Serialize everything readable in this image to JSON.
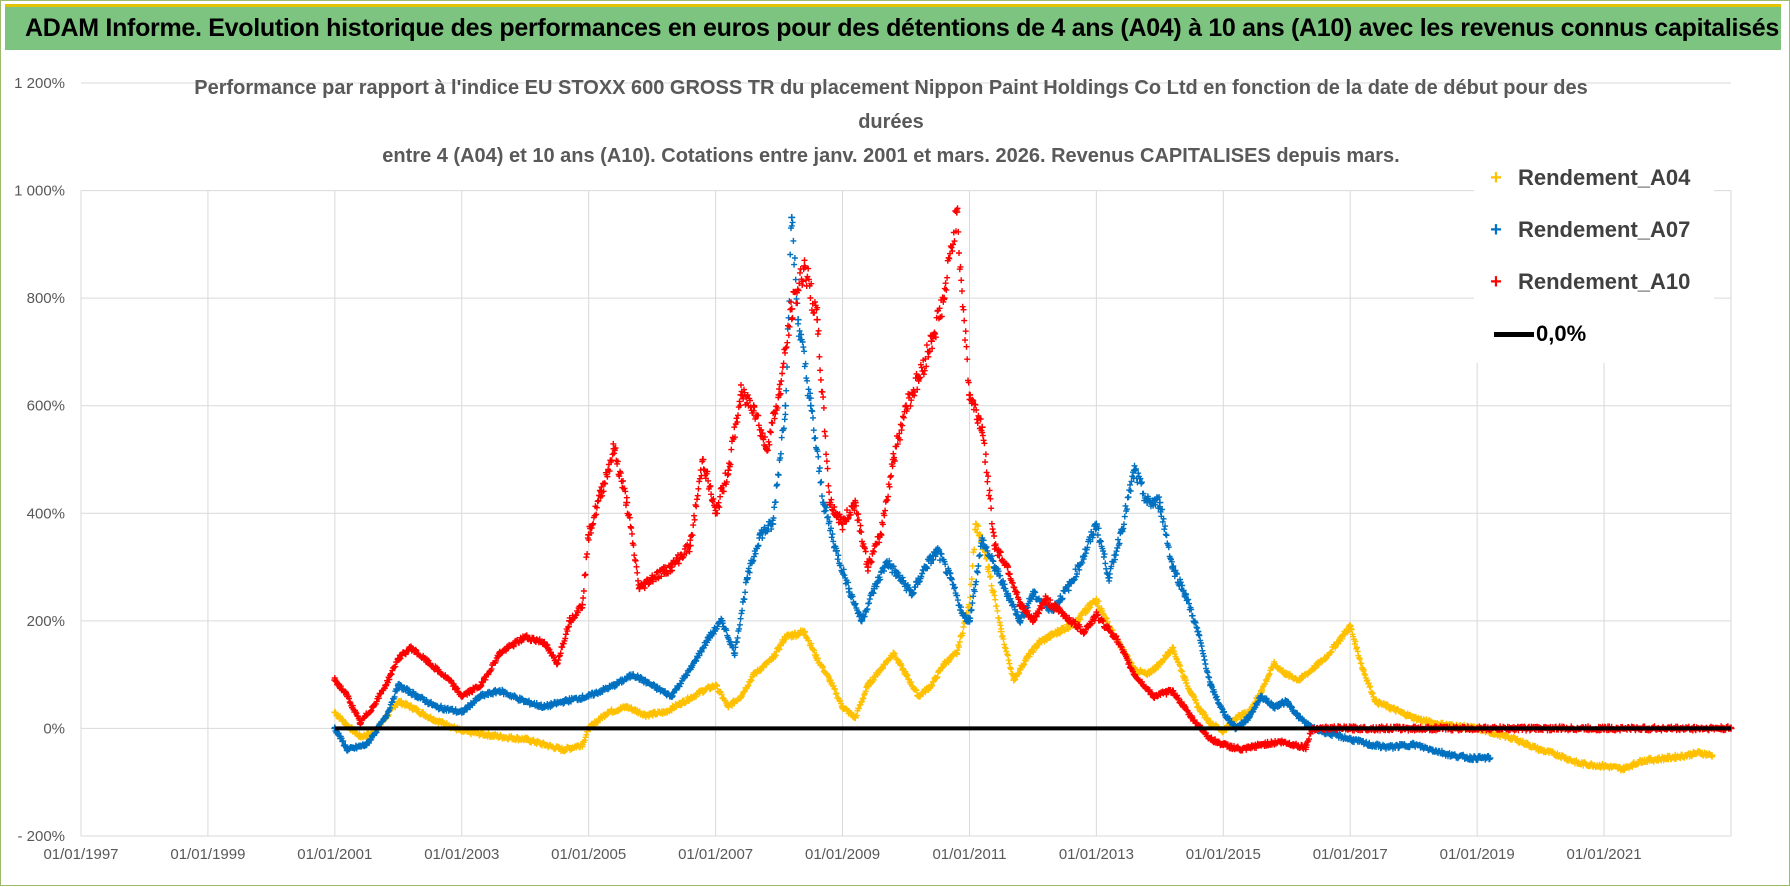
{
  "banner": {
    "title": "ADAM Informe. Evolution historique des performances en euros pour des détentions de 4 ans (A04) à 10 ans (A10) avec les revenus connus capitalisés"
  },
  "chart_data": {
    "type": "scatter",
    "title_lines": [
      "Performance par rapport à l'indice EU STOXX 600 GROSS TR  du placement Nippon Paint Holdings Co Ltd en fonction de la date de début pour des",
      "durées",
      "entre 4 (A04) et 10 ans (A10).  Cotations entre janv. 2001 et mars. 2026.  Revenus CAPITALISES depuis mars."
    ],
    "xlabel": "",
    "ylabel": "",
    "x_range": [
      1997.0,
      2023.0
    ],
    "ylim": [
      -200,
      1200
    ],
    "x_ticks": [
      1997,
      1999,
      2001,
      2003,
      2005,
      2007,
      2009,
      2011,
      2013,
      2015,
      2017,
      2019,
      2021
    ],
    "x_tick_labels": [
      "01/01/1997",
      "01/01/1999",
      "01/01/2001",
      "01/01/2003",
      "01/01/2005",
      "01/01/2007",
      "01/01/2009",
      "01/01/2011",
      "01/01/2013",
      "01/01/2015",
      "01/01/2017",
      "01/01/2019",
      "01/01/2021"
    ],
    "y_ticks": [
      -200,
      0,
      200,
      400,
      600,
      800,
      1000,
      1200
    ],
    "y_tick_labels": [
      "- 200%",
      "0%",
      "200%",
      "400%",
      "600%",
      "800%",
      "1 000%",
      "1 200%"
    ],
    "grid": true,
    "legend_position": "top-right",
    "series": [
      {
        "name": "Rendement_A04",
        "color": "#ffc000",
        "marker": "plus",
        "points": [
          [
            2001.0,
            30
          ],
          [
            2001.2,
            5
          ],
          [
            2001.4,
            -15
          ],
          [
            2001.6,
            -10
          ],
          [
            2001.8,
            20
          ],
          [
            2002.0,
            50
          ],
          [
            2002.2,
            40
          ],
          [
            2002.5,
            20
          ],
          [
            2002.8,
            5
          ],
          [
            2003.0,
            -5
          ],
          [
            2003.3,
            -10
          ],
          [
            2003.6,
            -15
          ],
          [
            2004.0,
            -20
          ],
          [
            2004.3,
            -30
          ],
          [
            2004.6,
            -40
          ],
          [
            2004.9,
            -30
          ],
          [
            2005.0,
            0
          ],
          [
            2005.3,
            30
          ],
          [
            2005.6,
            40
          ],
          [
            2005.9,
            25
          ],
          [
            2006.2,
            30
          ],
          [
            2006.5,
            50
          ],
          [
            2006.8,
            70
          ],
          [
            2007.0,
            80
          ],
          [
            2007.2,
            40
          ],
          [
            2007.4,
            60
          ],
          [
            2007.6,
            100
          ],
          [
            2007.9,
            130
          ],
          [
            2008.1,
            170
          ],
          [
            2008.4,
            180
          ],
          [
            2008.6,
            130
          ],
          [
            2008.8,
            90
          ],
          [
            2009.0,
            40
          ],
          [
            2009.2,
            20
          ],
          [
            2009.4,
            80
          ],
          [
            2009.6,
            110
          ],
          [
            2009.8,
            140
          ],
          [
            2010.0,
            100
          ],
          [
            2010.2,
            60
          ],
          [
            2010.4,
            80
          ],
          [
            2010.6,
            120
          ],
          [
            2010.8,
            140
          ],
          [
            2011.0,
            230
          ],
          [
            2011.1,
            380
          ],
          [
            2011.3,
            300
          ],
          [
            2011.5,
            180
          ],
          [
            2011.7,
            90
          ],
          [
            2011.9,
            130
          ],
          [
            2012.1,
            160
          ],
          [
            2012.4,
            180
          ],
          [
            2012.7,
            200
          ],
          [
            2013.0,
            240
          ],
          [
            2013.2,
            190
          ],
          [
            2013.4,
            150
          ],
          [
            2013.6,
            110
          ],
          [
            2013.8,
            100
          ],
          [
            2014.0,
            120
          ],
          [
            2014.2,
            150
          ],
          [
            2014.4,
            90
          ],
          [
            2014.6,
            40
          ],
          [
            2014.8,
            10
          ],
          [
            2015.0,
            -5
          ],
          [
            2015.2,
            20
          ],
          [
            2015.4,
            30
          ],
          [
            2015.6,
            70
          ],
          [
            2015.8,
            120
          ],
          [
            2016.0,
            100
          ],
          [
            2016.2,
            90
          ],
          [
            2016.4,
            110
          ],
          [
            2016.6,
            130
          ],
          [
            2016.8,
            160
          ],
          [
            2017.0,
            190
          ],
          [
            2017.2,
            110
          ],
          [
            2017.4,
            50
          ],
          [
            2017.6,
            40
          ],
          [
            2017.8,
            30
          ],
          [
            2018.0,
            20
          ],
          [
            2018.3,
            10
          ],
          [
            2018.6,
            5
          ],
          [
            2019.0,
            0
          ],
          [
            2019.3,
            -10
          ],
          [
            2019.6,
            -20
          ],
          [
            2020.0,
            -40
          ],
          [
            2020.3,
            -50
          ],
          [
            2020.6,
            -65
          ],
          [
            2021.0,
            -70
          ],
          [
            2021.3,
            -75
          ],
          [
            2021.6,
            -60
          ],
          [
            2022.0,
            -55
          ],
          [
            2022.3,
            -50
          ],
          [
            2022.5,
            -45
          ],
          [
            2022.7,
            -50
          ]
        ]
      },
      {
        "name": "Rendement_A07",
        "color": "#0070c0",
        "marker": "plus",
        "points": [
          [
            2001.0,
            0
          ],
          [
            2001.2,
            -40
          ],
          [
            2001.5,
            -30
          ],
          [
            2001.8,
            20
          ],
          [
            2002.0,
            80
          ],
          [
            2002.3,
            60
          ],
          [
            2002.6,
            40
          ],
          [
            2003.0,
            30
          ],
          [
            2003.3,
            60
          ],
          [
            2003.6,
            70
          ],
          [
            2004.0,
            50
          ],
          [
            2004.3,
            40
          ],
          [
            2004.6,
            50
          ],
          [
            2005.0,
            60
          ],
          [
            2005.4,
            80
          ],
          [
            2005.7,
            100
          ],
          [
            2006.0,
            80
          ],
          [
            2006.3,
            60
          ],
          [
            2006.6,
            110
          ],
          [
            2006.9,
            170
          ],
          [
            2007.1,
            200
          ],
          [
            2007.3,
            140
          ],
          [
            2007.5,
            280
          ],
          [
            2007.7,
            360
          ],
          [
            2007.9,
            380
          ],
          [
            2008.1,
            600
          ],
          [
            2008.2,
            950
          ],
          [
            2008.3,
            760
          ],
          [
            2008.5,
            600
          ],
          [
            2008.7,
            420
          ],
          [
            2008.9,
            330
          ],
          [
            2009.1,
            260
          ],
          [
            2009.3,
            200
          ],
          [
            2009.5,
            260
          ],
          [
            2009.7,
            310
          ],
          [
            2009.9,
            280
          ],
          [
            2010.1,
            250
          ],
          [
            2010.3,
            300
          ],
          [
            2010.5,
            330
          ],
          [
            2010.7,
            280
          ],
          [
            2010.9,
            210
          ],
          [
            2011.0,
            200
          ],
          [
            2011.2,
            350
          ],
          [
            2011.4,
            300
          ],
          [
            2011.6,
            250
          ],
          [
            2011.8,
            200
          ],
          [
            2012.0,
            250
          ],
          [
            2012.3,
            220
          ],
          [
            2012.6,
            270
          ],
          [
            2012.8,
            320
          ],
          [
            2013.0,
            380
          ],
          [
            2013.2,
            280
          ],
          [
            2013.4,
            370
          ],
          [
            2013.6,
            480
          ],
          [
            2013.8,
            420
          ],
          [
            2014.0,
            420
          ],
          [
            2014.2,
            300
          ],
          [
            2014.4,
            250
          ],
          [
            2014.6,
            180
          ],
          [
            2014.8,
            80
          ],
          [
            2015.0,
            30
          ],
          [
            2015.2,
            0
          ],
          [
            2015.4,
            20
          ],
          [
            2015.6,
            60
          ],
          [
            2015.8,
            40
          ],
          [
            2016.0,
            50
          ],
          [
            2016.2,
            20
          ],
          [
            2016.4,
            0
          ],
          [
            2016.7,
            -10
          ],
          [
            2017.0,
            -20
          ],
          [
            2017.3,
            -30
          ],
          [
            2017.6,
            -35
          ],
          [
            2018.0,
            -30
          ],
          [
            2018.3,
            -40
          ],
          [
            2018.6,
            -50
          ],
          [
            2018.9,
            -55
          ],
          [
            2019.2,
            -55
          ]
        ]
      },
      {
        "name": "Rendement_A10",
        "color": "#ff0000",
        "marker": "plus",
        "points": [
          [
            2001.0,
            90
          ],
          [
            2001.2,
            60
          ],
          [
            2001.4,
            10
          ],
          [
            2001.6,
            40
          ],
          [
            2001.8,
            80
          ],
          [
            2002.0,
            130
          ],
          [
            2002.2,
            150
          ],
          [
            2002.5,
            120
          ],
          [
            2002.8,
            90
          ],
          [
            2003.0,
            60
          ],
          [
            2003.3,
            80
          ],
          [
            2003.6,
            140
          ],
          [
            2004.0,
            170
          ],
          [
            2004.3,
            160
          ],
          [
            2004.5,
            120
          ],
          [
            2004.7,
            200
          ],
          [
            2004.9,
            230
          ],
          [
            2005.0,
            360
          ],
          [
            2005.2,
            440
          ],
          [
            2005.4,
            520
          ],
          [
            2005.6,
            420
          ],
          [
            2005.8,
            260
          ],
          [
            2006.0,
            280
          ],
          [
            2006.3,
            300
          ],
          [
            2006.6,
            340
          ],
          [
            2006.8,
            500
          ],
          [
            2007.0,
            400
          ],
          [
            2007.2,
            480
          ],
          [
            2007.4,
            620
          ],
          [
            2007.6,
            600
          ],
          [
            2007.8,
            520
          ],
          [
            2008.0,
            620
          ],
          [
            2008.2,
            780
          ],
          [
            2008.4,
            860
          ],
          [
            2008.6,
            760
          ],
          [
            2008.8,
            420
          ],
          [
            2009.0,
            380
          ],
          [
            2009.2,
            420
          ],
          [
            2009.4,
            300
          ],
          [
            2009.6,
            360
          ],
          [
            2009.8,
            500
          ],
          [
            2010.0,
            600
          ],
          [
            2010.2,
            650
          ],
          [
            2010.4,
            720
          ],
          [
            2010.6,
            800
          ],
          [
            2010.8,
            960
          ],
          [
            2011.0,
            620
          ],
          [
            2011.2,
            560
          ],
          [
            2011.4,
            340
          ],
          [
            2011.6,
            300
          ],
          [
            2011.8,
            230
          ],
          [
            2012.0,
            200
          ],
          [
            2012.2,
            240
          ],
          [
            2012.5,
            210
          ],
          [
            2012.8,
            180
          ],
          [
            2013.0,
            210
          ],
          [
            2013.3,
            170
          ],
          [
            2013.6,
            100
          ],
          [
            2013.9,
            60
          ],
          [
            2014.2,
            70
          ],
          [
            2014.5,
            20
          ],
          [
            2014.8,
            -20
          ],
          [
            2015.0,
            -30
          ],
          [
            2015.3,
            -40
          ],
          [
            2015.6,
            -30
          ],
          [
            2015.9,
            -25
          ],
          [
            2016.1,
            -30
          ],
          [
            2016.3,
            -35
          ],
          [
            2016.4,
            0
          ],
          [
            2017.0,
            0
          ],
          [
            2018.0,
            0
          ],
          [
            2019.0,
            0
          ],
          [
            2020.0,
            0
          ],
          [
            2021.0,
            0
          ],
          [
            2022.0,
            0
          ],
          [
            2023.0,
            0
          ]
        ]
      },
      {
        "name": "0,0%",
        "color": "#000000",
        "type": "line",
        "points": [
          [
            2001.0,
            0
          ],
          [
            2023.0,
            0
          ]
        ]
      }
    ]
  }
}
